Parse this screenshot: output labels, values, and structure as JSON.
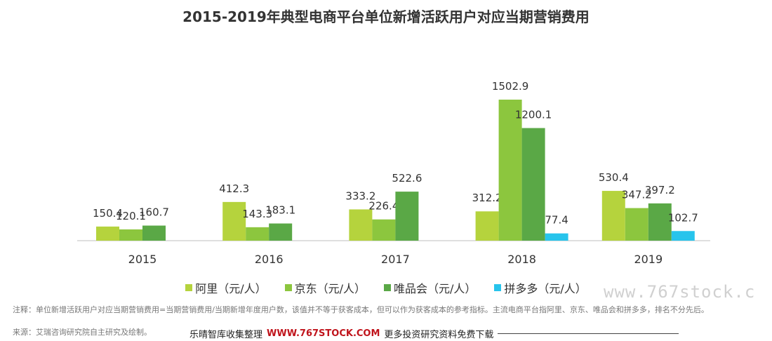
{
  "title": "2015-2019年典型电商平台单位新增活跃用户对应当期营销费用",
  "chart_data": {
    "type": "bar",
    "categories": [
      "2015",
      "2016",
      "2017",
      "2018",
      "2019"
    ],
    "series": [
      {
        "name": "阿里（元/人）",
        "color": "#b5d33d",
        "values": [
          150.4,
          412.3,
          333.2,
          312.2,
          530.4
        ]
      },
      {
        "name": "京东（元/人）",
        "color": "#8cc63e",
        "values": [
          120.1,
          143.3,
          226.4,
          1502.9,
          347.2
        ]
      },
      {
        "name": "唯品会（元/人）",
        "color": "#5aa846",
        "values": [
          160.7,
          183.1,
          522.6,
          1200.1,
          397.2
        ]
      },
      {
        "name": "拼多多（元/人）",
        "color": "#27c4ec",
        "values": [
          null,
          null,
          null,
          77.4,
          102.7
        ]
      }
    ],
    "data_labels": [
      [
        "150.4",
        "412.3",
        "333.2",
        "312.2",
        "530.4"
      ],
      [
        "120.1",
        "143.3",
        "226.4",
        "1502.9",
        "347.2"
      ],
      [
        "160.7",
        "183.1",
        "522.6",
        "1200.1",
        "397.2"
      ],
      [
        "",
        "",
        "",
        "77.4",
        "102.7"
      ]
    ],
    "ylim": [
      0,
      1502.9
    ],
    "grid": false,
    "legend_position": "bottom"
  },
  "watermark": "www.767stock.c",
  "note": "注释：单位新增活跃用户对应当期营销费用=当期营销费用/当期新增年度用户数，该值并不等于获客成本，但可以作为获客成本的参考指标。主流电商平台指阿里、京东、唯品会和拼多多，排名不分先后。",
  "source": "来源：艾瑞咨询研究院自主研究及绘制。",
  "banner": {
    "left_text": "乐晴智库收集整理",
    "brand": "WWW.767STOCK.COM",
    "right_text": "更多投资研究资料免费下载"
  }
}
